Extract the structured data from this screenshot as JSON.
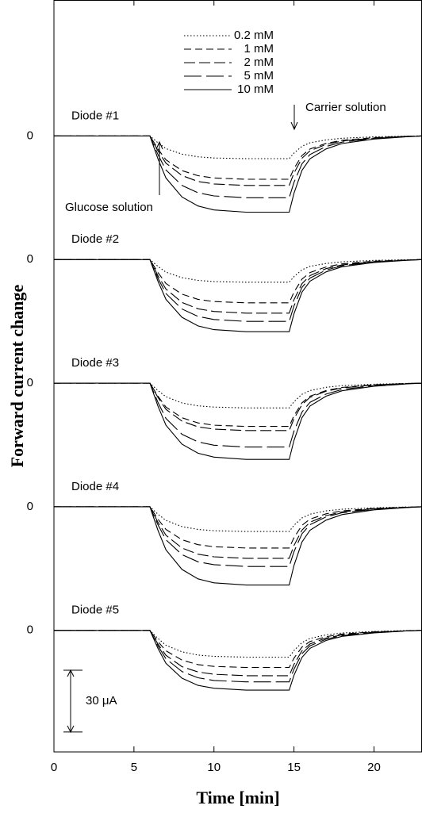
{
  "chart_data": {
    "type": "line",
    "xlabel": "Time [min]",
    "ylabel": "Forward current change",
    "color": "#000000",
    "xlim": [
      0,
      23
    ],
    "xticks": [
      0,
      5,
      10,
      15,
      20
    ],
    "ylim": [
      -299,
      66
    ],
    "yticks": [
      0,
      {
        "value": -60,
        "label": "0"
      },
      {
        "value": -120,
        "label": "0"
      },
      {
        "value": -180,
        "label": "0"
      },
      {
        "value": -240,
        "label": "0"
      }
    ],
    "x": [
      0,
      6,
      6.5,
      7,
      8,
      9,
      10,
      12,
      14.7,
      15,
      15.5,
      16,
      17,
      18,
      20,
      22,
      23
    ],
    "series_styles": [
      {
        "name": "0.2 mM",
        "dash": "1.5 2.5"
      },
      {
        "name": "1 mM",
        "dash": "9 5"
      },
      {
        "name": "2 mM",
        "dash": "14 5"
      },
      {
        "name": "5 mM",
        "dash": "22 6"
      },
      {
        "name": "10 mM",
        "dash": "none"
      }
    ],
    "annotations": [
      "Carrier solution",
      "Glucose solution"
    ],
    "scale_bar": {
      "value": 30,
      "label": "30 μA"
    },
    "panels": [
      {
        "title": "Diode #1",
        "values": [
          [
            0,
            0,
            -3.3,
            -6.1,
            -8.8,
            -10.1,
            -10.7,
            -11,
            -11,
            -8.3,
            -5,
            -3.3,
            -1.9,
            -1.1,
            -0.4,
            -0.1,
            0
          ],
          [
            0,
            0,
            -6.3,
            -11.6,
            -16.8,
            -19.3,
            -20.4,
            -21,
            -21,
            -15.8,
            -9.5,
            -6.3,
            -3.6,
            -2.1,
            -0.8,
            -0.2,
            0
          ],
          [
            0,
            0,
            -7.2,
            -13.2,
            -19.2,
            -22.1,
            -23.3,
            -24,
            -24,
            -18,
            -10.8,
            -7.2,
            -4.1,
            -2.4,
            -1,
            -0.2,
            0
          ],
          [
            0,
            0,
            -9,
            -16.5,
            -24,
            -27.6,
            -29.1,
            -30,
            -30,
            -22.5,
            -13.5,
            -9,
            -5.1,
            -3,
            -1.2,
            -0.3,
            0
          ],
          [
            0,
            0,
            -11.1,
            -20.4,
            -29.6,
            -34,
            -35.9,
            -37,
            -37,
            -27.8,
            -16.7,
            -11.1,
            -6.3,
            -3.7,
            -1.5,
            -0.4,
            0
          ]
        ]
      },
      {
        "title": "Diode #2",
        "values": [
          [
            -60,
            -60,
            -63.3,
            -66.1,
            -68.8,
            -70.1,
            -70.7,
            -71,
            -71,
            -68.3,
            -65,
            -63.3,
            -61.9,
            -61.1,
            -60.4,
            -60.1,
            -60
          ],
          [
            -60,
            -60,
            -66.3,
            -71.6,
            -76.8,
            -79.3,
            -80.4,
            -81,
            -81,
            -75.8,
            -69.5,
            -66.3,
            -63.6,
            -62.1,
            -60.8,
            -60.2,
            -60
          ],
          [
            -60,
            -60,
            -67.8,
            -74.3,
            -80.8,
            -83.9,
            -85.2,
            -86,
            -86,
            -79.5,
            -71.7,
            -67.8,
            -64.4,
            -62.6,
            -61,
            -60.3,
            -60
          ],
          [
            -60,
            -60,
            -69,
            -76.5,
            -84,
            -87.6,
            -89.1,
            -90,
            -90,
            -82.5,
            -73.5,
            -69,
            -65.1,
            -63,
            -61.2,
            -60.3,
            -60
          ],
          [
            -60,
            -60,
            -70.5,
            -79.3,
            -88,
            -92.2,
            -94,
            -95,
            -95,
            -86.3,
            -75.8,
            -70.5,
            -66,
            -63.5,
            -61.4,
            -60.4,
            -60
          ]
        ]
      },
      {
        "title": "Diode #3",
        "values": [
          [
            -120,
            -120,
            -123.6,
            -126.6,
            -129.6,
            -131,
            -131.6,
            -132,
            -132,
            -129,
            -125.4,
            -123.6,
            -122,
            -121.2,
            -120.5,
            -120.1,
            -120
          ],
          [
            -120,
            -120,
            -126.3,
            -131.6,
            -136.8,
            -139.3,
            -140.4,
            -141,
            -141,
            -135.8,
            -129.5,
            -126.3,
            -123.6,
            -122.1,
            -120.8,
            -120.2,
            -120
          ],
          [
            -120,
            -120,
            -126.9,
            -132.7,
            -138.4,
            -141.2,
            -142.3,
            -143,
            -143,
            -137.3,
            -130.4,
            -126.9,
            -123.9,
            -122.3,
            -120.9,
            -120.2,
            -120
          ],
          [
            -120,
            -120,
            -129.3,
            -137.1,
            -144.8,
            -148.5,
            -150.1,
            -151,
            -151,
            -143.3,
            -134,
            -129.3,
            -125.3,
            -123.1,
            -121.2,
            -120.3,
            -120
          ],
          [
            -120,
            -120,
            -131.1,
            -140.4,
            -149.6,
            -154,
            -155.9,
            -157,
            -157,
            -147.8,
            -136.7,
            -131.1,
            -126.3,
            -123.7,
            -121.5,
            -120.4,
            -120
          ]
        ]
      },
      {
        "title": "Diode #4",
        "values": [
          [
            -180,
            -180,
            -183.6,
            -186.6,
            -189.6,
            -191,
            -191.6,
            -192,
            -192,
            -189,
            -185.4,
            -183.6,
            -182,
            -181.2,
            -180.5,
            -180.1,
            -180
          ],
          [
            -180,
            -180,
            -186,
            -191,
            -196,
            -198.4,
            -199.4,
            -200,
            -200,
            -195,
            -189,
            -186,
            -183.4,
            -182,
            -180.8,
            -180.2,
            -180
          ],
          [
            -180,
            -180,
            -187.5,
            -193.8,
            -200,
            -203,
            -204.3,
            -205,
            -205,
            -198.8,
            -191.3,
            -187.5,
            -184.3,
            -182.5,
            -181,
            -180.3,
            -180
          ],
          [
            -180,
            -180,
            -188.7,
            -196,
            -203.2,
            -206.7,
            -208.1,
            -209,
            -209,
            -201.8,
            -193.1,
            -188.7,
            -184.9,
            -182.9,
            -181.2,
            -180.3,
            -180
          ],
          [
            -180,
            -180,
            -191.4,
            -200.9,
            -210.4,
            -215,
            -216.9,
            -218,
            -218,
            -208.5,
            -197.1,
            -191.4,
            -186.5,
            -183.8,
            -181.5,
            -180.4,
            -180
          ]
        ]
      },
      {
        "title": "Diode #5",
        "values": [
          [
            -240,
            -240,
            -243.9,
            -247.2,
            -250.4,
            -252,
            -252.6,
            -253,
            -253,
            -249.8,
            -245.9,
            -243.9,
            -242.2,
            -241.3,
            -240.5,
            -240.1,
            -240
          ],
          [
            -240,
            -240,
            -245.4,
            -249.9,
            -254.4,
            -256.6,
            -257.5,
            -258,
            -258,
            -253.5,
            -248.1,
            -245.4,
            -243.1,
            -241.8,
            -240.7,
            -240.2,
            -240
          ],
          [
            -240,
            -240,
            -246.6,
            -252.1,
            -257.6,
            -260.2,
            -261.3,
            -262,
            -262,
            -256.5,
            -249.9,
            -246.6,
            -243.7,
            -242.2,
            -240.9,
            -240.2,
            -240
          ],
          [
            -240,
            -240,
            -247.5,
            -253.8,
            -260,
            -263,
            -264.3,
            -265,
            -265,
            -258.8,
            -251.3,
            -247.5,
            -244.3,
            -242.5,
            -241,
            -240.3,
            -240
          ],
          [
            -240,
            -240,
            -248.7,
            -256,
            -263.2,
            -266.7,
            -268.1,
            -269,
            -269,
            -261.8,
            -253.1,
            -248.7,
            -244.9,
            -242.9,
            -241.2,
            -240.3,
            -240
          ]
        ]
      }
    ]
  }
}
